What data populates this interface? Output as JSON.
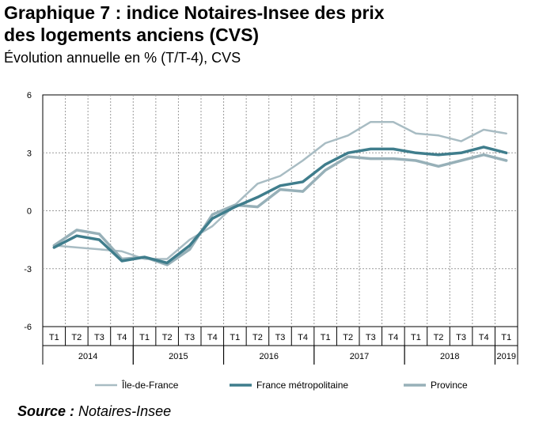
{
  "title_line1": "Graphique 7 : indice Notaires-Insee des prix",
  "title_line2": "des logements anciens (CVS)",
  "subtitle": "Évolution annuelle en % (T/T-4), CVS",
  "source_prefix": "Source :",
  "source_text": "Notaires-Insee",
  "colors": {
    "ile_de_france": "#a8bcc3",
    "france_metropolitaine": "#3f7d8c",
    "province": "#97b0b8",
    "grid": "#9a9a9a"
  },
  "chart_data": {
    "type": "line",
    "title": "Graphique 7 : indice Notaires-Insee des prix des logements anciens (CVS)",
    "subtitle": "Évolution annuelle en % (T/T-4), CVS",
    "x": [
      "2014 T1",
      "2014 T2",
      "2014 T3",
      "2014 T4",
      "2015 T1",
      "2015 T2",
      "2015 T3",
      "2015 T4",
      "2016 T1",
      "2016 T2",
      "2016 T3",
      "2016 T4",
      "2017 T1",
      "2017 T2",
      "2017 T3",
      "2017 T4",
      "2018 T1",
      "2018 T2",
      "2018 T3",
      "2018 T4",
      "2019 T1"
    ],
    "quarter_labels": [
      "T1",
      "T2",
      "T3",
      "T4",
      "T1",
      "T2",
      "T3",
      "T4",
      "T1",
      "T2",
      "T3",
      "T4",
      "T1",
      "T2",
      "T3",
      "T4",
      "T1",
      "T2",
      "T3",
      "T4",
      "T1"
    ],
    "year_labels": [
      {
        "label": "2014",
        "start": 0,
        "end": 3
      },
      {
        "label": "2015",
        "start": 4,
        "end": 7
      },
      {
        "label": "2016",
        "start": 8,
        "end": 11
      },
      {
        "label": "2017",
        "start": 12,
        "end": 15
      },
      {
        "label": "2018",
        "start": 16,
        "end": 19
      },
      {
        "label": "2019",
        "start": 20,
        "end": 20
      }
    ],
    "yticks": [
      -6,
      -3,
      0,
      3,
      6
    ],
    "ylim": [
      -6,
      6
    ],
    "series": [
      {
        "name": "Île-de-France",
        "color": "#a8bcc3",
        "width": 2.5,
        "values": [
          -1.8,
          -1.9,
          -2.0,
          -2.1,
          -2.5,
          -2.5,
          -1.5,
          -0.8,
          0.3,
          1.4,
          1.8,
          2.6,
          3.5,
          3.9,
          4.6,
          4.6,
          4.0,
          3.9,
          3.6,
          4.2,
          4.0
        ]
      },
      {
        "name": "France métropolitaine",
        "color": "#3f7d8c",
        "width": 3.5,
        "values": [
          -1.9,
          -1.3,
          -1.5,
          -2.6,
          -2.4,
          -2.7,
          -1.8,
          -0.4,
          0.2,
          0.7,
          1.3,
          1.5,
          2.4,
          3.0,
          3.2,
          3.2,
          3.0,
          2.9,
          3.0,
          3.3,
          3.0
        ]
      },
      {
        "name": "Province",
        "color": "#97b0b8",
        "width": 3.5,
        "values": [
          -1.8,
          -1.0,
          -1.2,
          -2.5,
          -2.4,
          -2.8,
          -2.0,
          -0.2,
          0.3,
          0.2,
          1.1,
          1.0,
          2.1,
          2.8,
          2.7,
          2.7,
          2.6,
          2.3,
          2.6,
          2.9,
          2.6
        ]
      }
    ],
    "grid": true,
    "legend_position": "bottom"
  }
}
